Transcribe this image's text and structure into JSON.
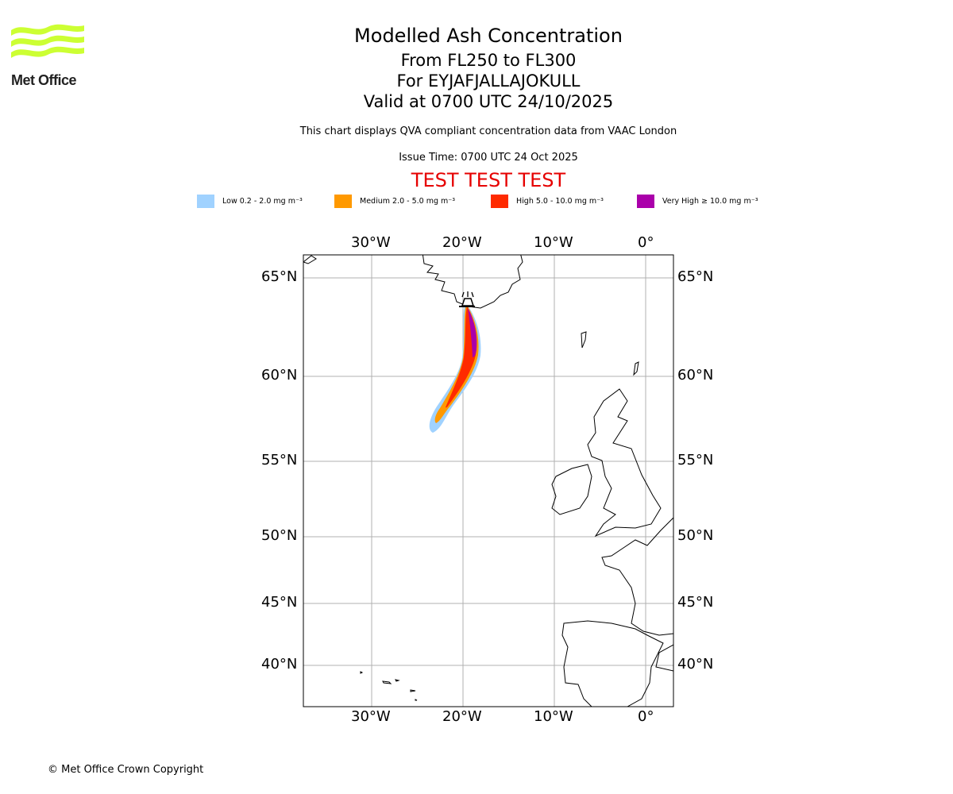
{
  "logo": {
    "text": "Met Office",
    "color": "#ccff33"
  },
  "header": {
    "title": "Modelled Ash Concentration",
    "levels": "From FL250 to FL300",
    "volcano": "For EYJAFJALLAJOKULL",
    "valid": "Valid at 0700 UTC 24/10/2025",
    "description": "This chart displays QVA compliant concentration data from VAAC London",
    "issue": "Issue Time: 0700 UTC 24 Oct 2025",
    "test_banner": "TEST TEST TEST",
    "test_color": "#e60000"
  },
  "chart_data": {
    "type": "map",
    "title": "Modelled Ash Concentration",
    "legend": [
      {
        "label": "Low 0.2 - 2.0 mg m⁻³",
        "color": "#a0d2ff"
      },
      {
        "label": "Medium 2.0 - 5.0 mg m⁻³",
        "color": "#ff9900"
      },
      {
        "label": "High 5.0 - 10.0 mg m⁻³",
        "color": "#ff2a00"
      },
      {
        "label": "Very High ≥ 10.0 mg m⁻³",
        "color": "#aa00aa"
      }
    ],
    "lon_ticks": [
      "30°W",
      "20°W",
      "10°W",
      "0°"
    ],
    "lat_ticks": [
      "65°N",
      "60°N",
      "55°N",
      "50°N",
      "45°N",
      "40°N"
    ],
    "lon_range": [
      -37.5,
      3
    ],
    "lat_range": [
      37,
      66
    ],
    "grid": true
  },
  "footer": {
    "copyright": "© Met Office Crown Copyright"
  }
}
